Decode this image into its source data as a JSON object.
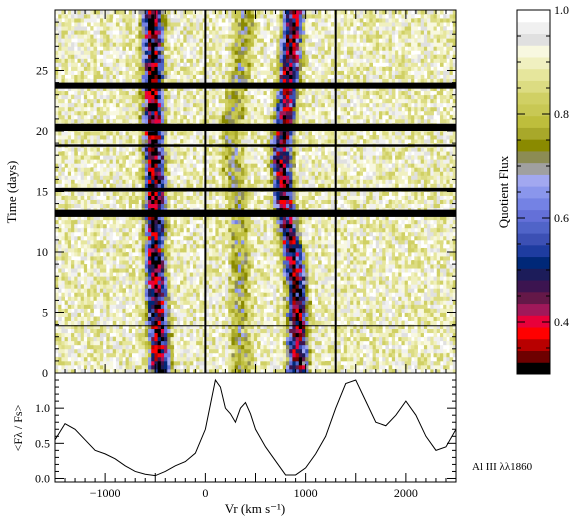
{
  "chart_data": [
    {
      "type": "heatmap",
      "xlabel": "",
      "ylabel": "Time (days)",
      "xlim": [
        -1500,
        2500
      ],
      "ylim": [
        0,
        30
      ],
      "yticks": [
        0,
        5,
        10,
        15,
        20,
        25
      ],
      "xticks_minor": [
        -1500,
        -1000,
        -500,
        0,
        500,
        1000,
        1500,
        2000,
        2500
      ],
      "vertical_lines": [
        0,
        1300
      ],
      "gap_bands_days": [
        [
          23.5,
          24.0
        ],
        [
          20.0,
          20.6
        ],
        [
          18.7,
          18.9
        ],
        [
          15.0,
          15.3
        ],
        [
          12.9,
          13.5
        ]
      ],
      "reference_line_day": 3.9,
      "absorption_tracks": [
        {
          "name": "blue trough",
          "points": [
            [
              0,
              -450
            ],
            [
              5,
              -480
            ],
            [
              10,
              -500
            ],
            [
              15,
              -500
            ],
            [
              20,
              -520
            ],
            [
              25,
              -520
            ],
            [
              29.5,
              -530
            ]
          ],
          "strength": 0.95
        },
        {
          "name": "red trough",
          "points": [
            [
              0,
              920
            ],
            [
              5,
              920
            ],
            [
              8,
              900
            ],
            [
              11,
              850
            ],
            [
              13,
              800
            ],
            [
              15,
              780
            ],
            [
              18,
              760
            ],
            [
              22,
              800
            ],
            [
              26,
              850
            ],
            [
              29.5,
              880
            ]
          ],
          "strength": 0.9
        },
        {
          "name": "wide trough",
          "points": [
            [
              0,
              350
            ],
            [
              10,
              350
            ],
            [
              15,
              300
            ],
            [
              20,
              250
            ],
            [
              25,
              350
            ],
            [
              29.5,
              400
            ]
          ],
          "strength": 0.35
        }
      ]
    },
    {
      "type": "line",
      "ylabel": "<Fλ / Fs>",
      "xlabel": "Vr (km s⁻¹)",
      "xlim": [
        -1500,
        2500
      ],
      "ylim": [
        -0.05,
        1.5
      ],
      "xticks": [
        -1000,
        0,
        1000,
        2000
      ],
      "yticks": [
        0.0,
        0.5,
        1.0
      ],
      "x": [
        -1500,
        -1400,
        -1300,
        -1200,
        -1100,
        -1000,
        -900,
        -800,
        -700,
        -600,
        -500,
        -400,
        -300,
        -200,
        -100,
        0,
        50,
        100,
        150,
        200,
        250,
        300,
        350,
        400,
        450,
        500,
        600,
        700,
        800,
        900,
        1000,
        1100,
        1200,
        1300,
        1400,
        1500,
        1600,
        1700,
        1800,
        1900,
        2000,
        2100,
        2200,
        2300,
        2400,
        2500
      ],
      "y": [
        0.55,
        0.78,
        0.7,
        0.55,
        0.4,
        0.35,
        0.28,
        0.18,
        0.1,
        0.06,
        0.04,
        0.1,
        0.18,
        0.24,
        0.36,
        0.7,
        1.05,
        1.4,
        1.3,
        1.0,
        0.92,
        0.8,
        1.0,
        1.08,
        0.92,
        0.7,
        0.45,
        0.25,
        0.05,
        0.05,
        0.15,
        0.35,
        0.6,
        1.0,
        1.35,
        1.4,
        1.1,
        0.8,
        0.75,
        0.9,
        1.1,
        0.9,
        0.6,
        0.4,
        0.45,
        0.7
      ]
    },
    {
      "type": "colorbar",
      "ylabel": "Quotient Flux",
      "ylim": [
        0.3,
        1.0
      ],
      "yticks": [
        0.4,
        0.6,
        0.8,
        1.0
      ],
      "colors": [
        "#000000",
        "#6e0000",
        "#b80000",
        "#ff0000",
        "#e8003a",
        "#a0185a",
        "#641848",
        "#3c1450",
        "#1c1c5a",
        "#002878",
        "#1e3ca0",
        "#3c50b4",
        "#5064c8",
        "#6470d8",
        "#7482e4",
        "#8a96ec",
        "#a2a8f0",
        "#a0a0a0",
        "#8c8c54",
        "#8a8a00",
        "#a8a82a",
        "#bebe3c",
        "#c8c854",
        "#d0d064",
        "#dcdc82",
        "#e6e69c",
        "#f0f0c0",
        "#f8f8e0",
        "#e0e0e0",
        "#f0f0f0",
        "#ffffff"
      ]
    }
  ],
  "labels": {
    "line_label": "Al III λλ1860",
    "x_axis_label": "Vr (km s⁻¹)"
  }
}
